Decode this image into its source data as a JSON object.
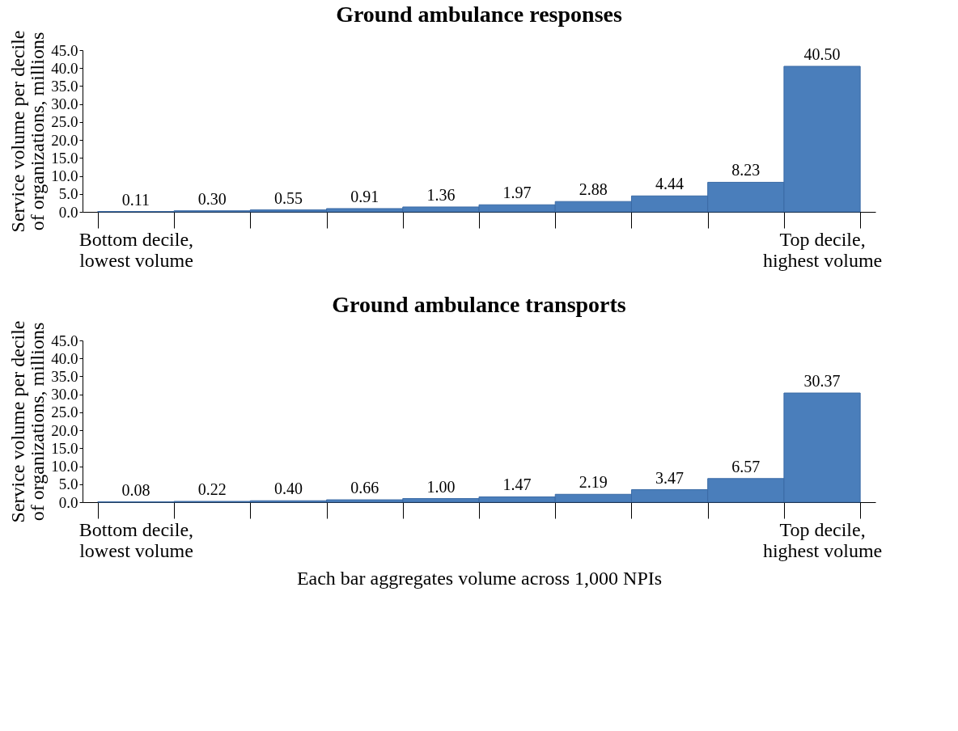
{
  "chart_data": [
    {
      "type": "bar",
      "title": "Ground ambulance responses",
      "ylabel": "Service volume per decile of organizations, millions",
      "categories": [
        "Bottom decile, lowest volume",
        null,
        null,
        null,
        null,
        null,
        null,
        null,
        null,
        "Top decile, highest volume"
      ],
      "values": [
        0.11,
        0.3,
        0.55,
        0.91,
        1.36,
        1.97,
        2.88,
        4.44,
        8.23,
        40.5
      ],
      "value_labels": [
        "0.11",
        "0.30",
        "0.55",
        "0.91",
        "1.36",
        "1.97",
        "2.88",
        "4.44",
        "8.23",
        "40.50"
      ],
      "color": "#4a7ebb",
      "ylim": [
        0,
        45
      ],
      "yticks": [
        {
          "value": 0,
          "label": "0.0"
        },
        {
          "value": 5,
          "label": "5.0"
        },
        {
          "value": 10,
          "label": "10.0"
        },
        {
          "value": 15,
          "label": "15.0"
        },
        {
          "value": 20,
          "label": "20.0"
        },
        {
          "value": 25,
          "label": "25.0"
        },
        {
          "value": 30,
          "label": "30.0"
        },
        {
          "value": 35,
          "label": "35.0"
        },
        {
          "value": 40,
          "label": "40.0"
        },
        {
          "value": 45,
          "label": "45.0"
        }
      ],
      "grid": false
    },
    {
      "type": "bar",
      "title": "Ground ambulance transports",
      "ylabel": "Service volume per decile of organizations, millions",
      "xlabel": "Each bar aggregates volume across 1,000 NPIs",
      "categories": [
        "Bottom decile, lowest volume",
        null,
        null,
        null,
        null,
        null,
        null,
        null,
        null,
        "Top decile, highest volume"
      ],
      "values": [
        0.08,
        0.22,
        0.4,
        0.66,
        1.0,
        1.47,
        2.19,
        3.47,
        6.57,
        30.37
      ],
      "value_labels": [
        "0.08",
        "0.22",
        "0.40",
        "0.66",
        "1.00",
        "1.47",
        "2.19",
        "3.47",
        "6.57",
        "30.37"
      ],
      "color": "#4a7ebb",
      "ylim": [
        0,
        45
      ],
      "yticks": [
        {
          "value": 0,
          "label": "0.0"
        },
        {
          "value": 5,
          "label": "5.0"
        },
        {
          "value": 10,
          "label": "10.0"
        },
        {
          "value": 15,
          "label": "15.0"
        },
        {
          "value": 20,
          "label": "20.0"
        },
        {
          "value": 25,
          "label": "25.0"
        },
        {
          "value": 30,
          "label": "30.0"
        },
        {
          "value": 35,
          "label": "35.0"
        },
        {
          "value": 40,
          "label": "40.0"
        },
        {
          "value": 45,
          "label": "45.0"
        }
      ],
      "grid": false
    }
  ]
}
